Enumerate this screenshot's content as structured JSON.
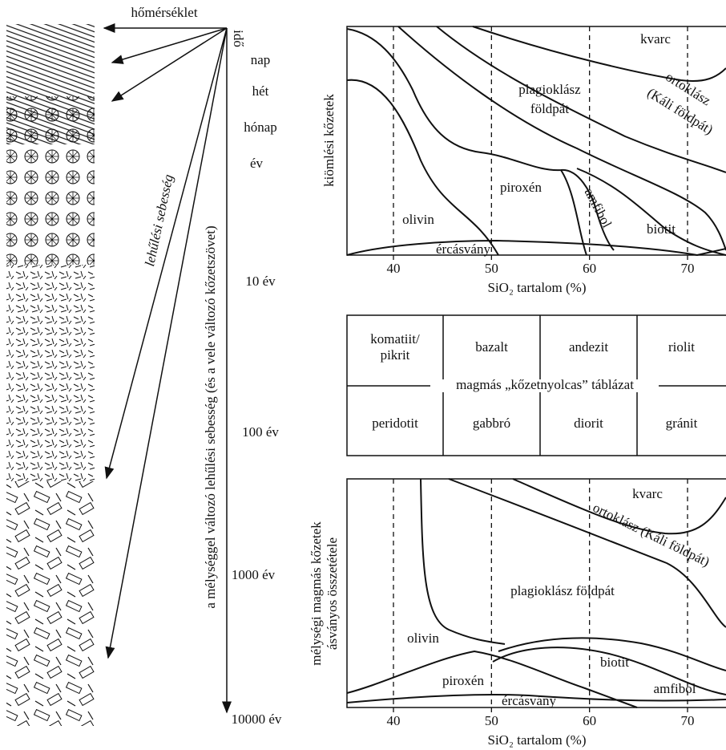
{
  "left": {
    "temperature": "hőmérséklet",
    "time": "idő",
    "time_marks": [
      "nap",
      "hét",
      "hónap",
      "év",
      "10 év",
      "100 év",
      "1000 év",
      "10000 év"
    ],
    "cooling_rate": "lehűlési sebesség",
    "depth_label": "a mélységgel változó lehűlési sebesség (és a vele változó kőzetszövet)"
  },
  "volcanic": {
    "y_label": "kiömlési kőzetek",
    "x_label": "SiO₂ tartalom (%)",
    "xticks": [
      40,
      50,
      60,
      70
    ],
    "minerals": [
      "kvarc",
      "ortoklász",
      "(Káli földpát)",
      "plagioklász",
      "földpát",
      "piroxén",
      "amfibol",
      "olivin",
      "biotit",
      "ércásvány"
    ]
  },
  "table": {
    "caption": "magmás „kőzetnyolcas” táblázat",
    "rows": [
      [
        "komatiit/ pikrit",
        "bazalt",
        "andezit",
        "riolit"
      ],
      [
        "peridotit",
        "gabbró",
        "diorit",
        "gránit"
      ]
    ]
  },
  "plutonic": {
    "y_label": [
      "mélységi magmás kőzetek",
      "ásványos összetétele"
    ],
    "x_label": "SiO₂ tartalom (%)",
    "xticks": [
      40,
      50,
      60,
      70
    ],
    "minerals": [
      "kvarc",
      "ortoklász (Káli földpát)",
      "plagioklász földpát",
      "olivin",
      "biotit",
      "piroxén",
      "amfibol",
      "ércásvány"
    ]
  }
}
